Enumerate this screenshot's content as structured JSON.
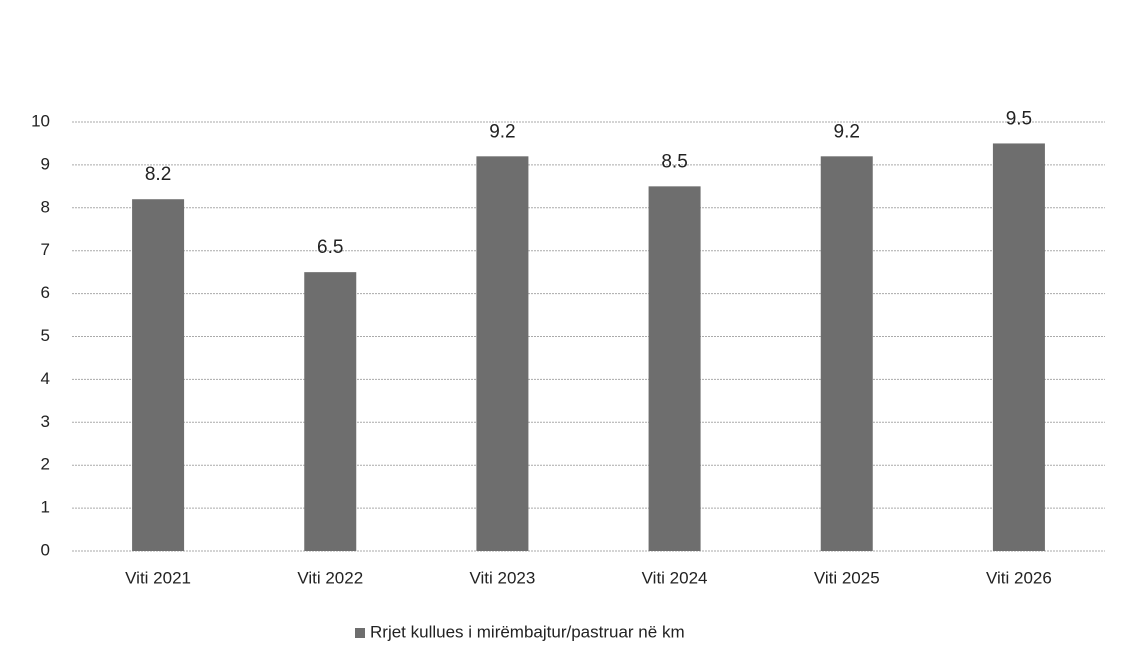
{
  "chart_data": {
    "type": "bar",
    "categories": [
      "Viti 2021",
      "Viti 2022",
      "Viti 2023",
      "Viti 2024",
      "Viti 2025",
      "Viti 2026"
    ],
    "series": [
      {
        "name": "Rrjet kullues i mirëmbajtur/pastruar në km",
        "color": "#6e6e6e",
        "values": [
          8.2,
          6.5,
          9.2,
          8.5,
          9.2,
          9.5
        ]
      }
    ],
    "ylim": [
      0,
      10
    ],
    "yticks": [
      0,
      1,
      2,
      3,
      4,
      5,
      6,
      7,
      8,
      9,
      10
    ],
    "grid": true,
    "legend": "bottom"
  }
}
